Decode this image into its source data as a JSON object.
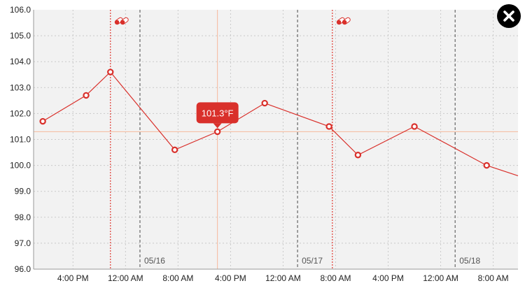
{
  "chart_data": {
    "type": "line",
    "y_ticks": [
      "106.0",
      "105.0",
      "104.0",
      "103.0",
      "102.0",
      "101.0",
      "100.0",
      "99.0",
      "98.0",
      "97.0",
      "96.0"
    ],
    "ylim": [
      96,
      106
    ],
    "x_range_hours": [
      0,
      69
    ],
    "x_ticks": [
      {
        "label": "4:00 PM",
        "h": 6
      },
      {
        "label": "12:00 AM",
        "h": 14
      },
      {
        "label": "8:00 AM",
        "h": 22
      },
      {
        "label": "4:00 PM",
        "h": 30
      },
      {
        "label": "12:00 AM",
        "h": 38
      },
      {
        "label": "8:00 AM",
        "h": 46
      },
      {
        "label": "4:00 PM",
        "h": 54
      },
      {
        "label": "12:00 AM",
        "h": 62
      },
      {
        "label": "8:00 AM",
        "h": 70
      }
    ],
    "day_markers": [
      {
        "label": "05/16",
        "h": 16.2
      },
      {
        "label": "05/17",
        "h": 40.2
      },
      {
        "label": "05/18",
        "h": 64.2
      }
    ],
    "medication_markers": [
      {
        "h": 11.7,
        "icon": "pill-icon"
      },
      {
        "h": 45.5,
        "icon": "pill-icon"
      }
    ],
    "series": [
      {
        "points": [
          {
            "h": 1.4,
            "y": 101.7
          },
          {
            "h": 8.0,
            "y": 102.7
          },
          {
            "h": 11.7,
            "y": 103.6
          },
          {
            "h": 21.5,
            "y": 100.6
          },
          {
            "h": 28.0,
            "y": 101.3
          },
          {
            "h": 35.2,
            "y": 102.4
          },
          {
            "h": 45.0,
            "y": 101.5
          },
          {
            "h": 49.4,
            "y": 100.4
          },
          {
            "h": 58.0,
            "y": 101.5
          },
          {
            "h": 69.0,
            "y": 100.0
          }
        ],
        "tail_y": 99.6,
        "color": "#d9302b"
      }
    ],
    "selected": {
      "index": 4,
      "label": "101.3°F"
    },
    "grid": true,
    "colors": {
      "line": "#d9302b",
      "grid": "#c9c9c9",
      "plot_bg": "#f2f2f2",
      "crosshair": "#f6b89c",
      "day_marker": "#666666",
      "med_marker": "#e03b33"
    }
  },
  "close_button": {
    "icon": "close-icon"
  }
}
